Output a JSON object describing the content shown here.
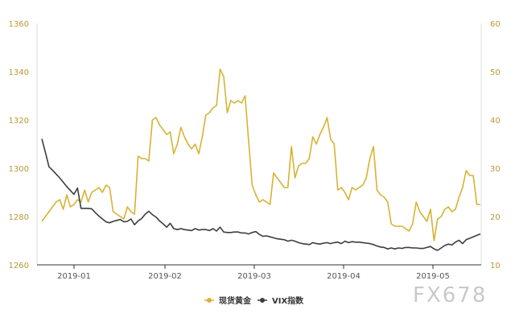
{
  "chart_data": {
    "type": "line",
    "x_labels": [
      "2019-01",
      "2019-02",
      "2019-03",
      "2019-04",
      "2019-05"
    ],
    "y_left": {
      "ticks": [
        1260,
        1280,
        1300,
        1320,
        1340,
        1360
      ],
      "range": [
        1260,
        1360
      ]
    },
    "y_right": {
      "ticks": [
        10,
        20,
        30,
        40,
        50,
        60
      ],
      "range": [
        10,
        60
      ]
    },
    "series": [
      {
        "name": "现货黄金",
        "axis": "left",
        "color": "#d6b333",
        "values": [
          1278,
          1280,
          1282,
          1284,
          1286,
          1287,
          1283,
          1289,
          1284,
          1285,
          1287,
          1286,
          1291,
          1286,
          1290,
          1291,
          1292,
          1290,
          1293,
          1292,
          1282,
          1281,
          1280,
          1279,
          1284,
          1282,
          1281,
          1305,
          1304,
          1304,
          1303,
          1320,
          1321,
          1318,
          1316,
          1314,
          1315,
          1306,
          1310,
          1317,
          1313,
          1310,
          1308,
          1310,
          1306,
          1313,
          1322,
          1323,
          1325,
          1326,
          1341,
          1338,
          1323,
          1328,
          1327,
          1328,
          1327,
          1330,
          1311,
          1293,
          1289,
          1286,
          1287,
          1286,
          1285,
          1298,
          1296,
          1294,
          1292,
          1292,
          1309,
          1296,
          1301,
          1302,
          1302,
          1304,
          1313,
          1310,
          1314,
          1317,
          1321,
          1312,
          1310,
          1291,
          1292,
          1290,
          1287,
          1292,
          1291,
          1292,
          1293,
          1296,
          1304,
          1309,
          1291,
          1289,
          1288,
          1286,
          1277,
          1276,
          1276,
          1276,
          1275,
          1274,
          1277,
          1286,
          1282,
          1280,
          1278,
          1283,
          1270,
          1279,
          1280,
          1283,
          1284,
          1282,
          1283,
          1288,
          1292,
          1299,
          1297,
          1297,
          1285,
          1285
        ]
      },
      {
        "name": "VIX指数",
        "axis": "right",
        "color": "#3d3d3d",
        "values": [
          36.1,
          33.3,
          30.3,
          29.6,
          28.8,
          28.0,
          27.1,
          26.2,
          25.4,
          24.6,
          25.9,
          21.7,
          21.7,
          21.7,
          21.6,
          20.8,
          20.1,
          19.5,
          18.9,
          18.7,
          19.0,
          19.2,
          19.4,
          18.9,
          19.0,
          19.5,
          18.3,
          19.1,
          19.6,
          20.5,
          21.1,
          20.4,
          19.9,
          19.1,
          18.5,
          17.8,
          18.6,
          17.5,
          17.3,
          17.5,
          17.3,
          17.2,
          17.1,
          17.5,
          17.2,
          17.3,
          17.3,
          17.1,
          17.5,
          17.0,
          17.8,
          16.8,
          16.7,
          16.7,
          16.8,
          16.8,
          16.6,
          16.6,
          16.4,
          16.7,
          16.9,
          16.3,
          15.9,
          16.0,
          15.8,
          15.6,
          15.4,
          15.3,
          15.2,
          14.9,
          15.1,
          14.9,
          14.6,
          14.4,
          14.3,
          14.2,
          14.6,
          14.4,
          14.3,
          14.5,
          14.6,
          14.4,
          14.6,
          14.7,
          14.4,
          14.9,
          14.6,
          14.8,
          14.7,
          14.7,
          14.6,
          14.5,
          14.4,
          14.2,
          13.9,
          13.7,
          13.6,
          13.3,
          13.5,
          13.3,
          13.5,
          13.4,
          13.6,
          13.6,
          13.5,
          13.5,
          13.4,
          13.4,
          13.6,
          13.8,
          13.3,
          13.0,
          13.5,
          14.0,
          14.3,
          14.1,
          14.7,
          15.1,
          14.4,
          15.2,
          15.5,
          15.8,
          16.1,
          16.4
        ]
      }
    ],
    "legend_position": "bottom-center",
    "grid": false
  },
  "watermark": "FX678"
}
